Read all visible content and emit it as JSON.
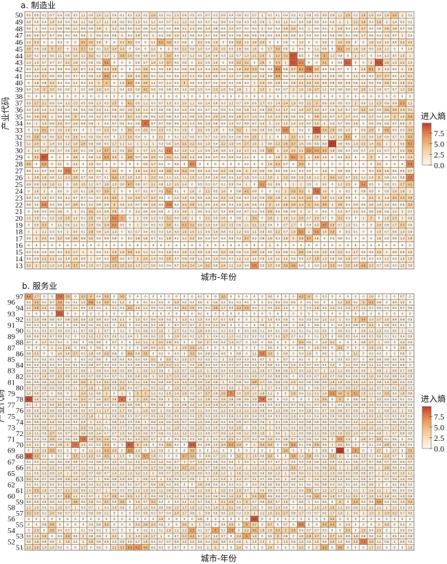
{
  "chart_data": [
    {
      "type": "heatmap",
      "title": "a. 制造业",
      "xlabel": "城市-年份",
      "ylabel": "产业代码",
      "legend_title": "进入熵",
      "legend_ticks": [
        "0.0",
        "2.5",
        "5.0",
        "7.5"
      ],
      "legend_tick_values": [
        0,
        2.5,
        5,
        7.5
      ],
      "color_range": [
        0,
        9.8
      ],
      "legend_position": "right",
      "columns": 50,
      "y_labels": [
        "50",
        "49",
        "48",
        "47",
        "46",
        "45",
        "44",
        "43",
        "42",
        "41",
        "40",
        "39",
        "38",
        "37",
        "36",
        "35",
        "34",
        "33",
        "32",
        "31",
        "30",
        "29",
        "28",
        "27",
        "26",
        "25",
        "24",
        "23",
        "22",
        "21",
        "20",
        "19",
        "18",
        "17",
        "16",
        "15",
        "14",
        "13"
      ],
      "rows": [
        "0.6 0.8 0.2 0.7 0.4 0.5 0.3 1.1 0.6 1.6 1.2 0.4 0.1 0.3 1.3 0.2 2.8 0.3 0.2 1.3 0.6 0.5 0.3 0.7 0.2 0.9 0.4 0.6 0.2 0.7 1 0.2 0.1 0.4 0.3 0.2 0.6 0.5 0.8 0.8 1.2 2.9 0.2 2.6 1.6 0.6 1.9 3.9 1 0.2",
        "0.8 0.5 0.4 1.8 0.8 0.4 0.8 1.1 0.9 1.7 1.1 0.8 0.6 0.5 1.3 0.2 1.1 0.4 0.7 1.1 1.3 0.5 0.3 0.7 0.2 0.9 0.4 0.6 0.3 0.5 0.8 1 0.5 1.2 0.3 0.5 0.8 0.5 0.4 0.5 1 1 2.2 2.8 0.4 2.8 1 1.4 0.5 0.2",
        "0.6 1 0.2 1.1 0.9 0.6 1.1 0.8 0.5 1.9 1 1.2 0.5 0.5 1.4 0.5 1.4 0.2 0.2 0.8 1.1 1.1 0.6 1.4 0.8 0.3 1.2 0.7 0.2 0.4 1 0.2 0.2 1.9 2.5 0.4 1 0.3 0.4 1 1.9 0.3 1.2 2.7 0.2 0.5 2.5 1.8 0.7 0.5",
        "0.6 0.8 0.7 0.7 0.5 0.1 0.5 0.6 1 0.6 0.6 0.6 1 0.2 1.8 0.3 1 0.3 0.8 1.4 1.1 0.5 0.3 0.7 0.2 0.9 0.4 0.6 0.8 0.5 0.5 0.3 0.9 0.8 0.8 0.2 0.4 0.4 0.2 0.6 0.8 0.1 0.5 1.7 0.6 0.4 1.3 0.7 1 0.3",
        "1.2 2.4 0 0 0.4 0 0 4.1 3.2 1.6 0 0 2.1 3.2 0.4 0 1.1 5.1 3.8 0.2 0.5 0 2.1 0.5 1.6 0 0.8 3.2 1.1 1.9 2.4 0 0 0.5 0 1.2 0 0 0.8 0 2.5 2.5 0 0 1.8 1.4 1.2 0.8 2.3 2.2",
        "2.6 0.8 1.6 3 2.7 0 2.1 3.7 1.6 0.2 2.2 2.4 2.2 0 0.4 0 1.2 0 1 0.6 2.2 0.9 1.3 0.4 2.2 1.5 0.6 1.8 0.6 1.6 0 1.7 3.6 0.5 0 0.4 0 1.1 0.8 0 5.1 2.6 1.6 1.6 0.5 1.9 1.2 0 0 1.4",
        "2.3 0.2 0.6 0.6 1.1 0.6 1.6 1.2 3.1 0.2 1.7 1 3.9 2.6 0.6 0.8 0.8 2 3.6 0.4 0.7 1.1 0.6 1.4 0.8 0.3 1.2 0.7 1.3 2.1 2.6 1 3.2 3.2 8.7 0.5 0 0.8 5 1.2 0.8 0 2 0.7 0 0.4 1.1 0.5 1.5 1",
        "1.3 1.3 0.7 0.7 0.7 2.2 1.8 0.4 0.6 0.5 6.1 0 0 0 0.6 0.7 1.8 1.3 3.7 0.6 0.8 0 2.1 0.5 1.6 0 0.8 3.2 3.1 0 2.8 0 3.3 1 8.7 6.5 0 0 4.1 0 0.4 8.3 0 0 2 8.8 2.6 1.3 2.2 1.3",
        "0.3 1.4 1.3 0.2 0.8 0.4 2.2 0.7 1.3 0.5 2.4 2.8 0 0 0.3 2.8 0.2 0.6 1.5 0.2 0.8 0.9 1.3 0.4 2.2 1.5 0.6 1.8 3.2 3.4 0.5 0.3 6.6 0.8 2.7 5.4 7.8 3.4 0.3 0.5 0.7 0 0 1.9 5.1 2 1.2 0.3 1 1.8",
        "0.3 1.2 2.1 0.6 0.5 0.2 0.7 0.2 0.6 1.2 5.6 1.2 0 2.5 1.5 3.4 0.2 1.1 0.2 0.5 1.7 1.1 0.6 1.4 0.8 0.3 1.2 0.7 1.8 1.4 1.6 0.6 4.8 0.3 0.4 1.6 1.3 1.5 0.5 0.5 0.8 0 1.1 0.5 0.2 2.7 2.7 0.4 1.2 2.1",
        "0 1.5 0.8 2.3 0.4 0.2 1.1 0.3 1.2 2 4 0 1.2 5.4 0.6 2.9 1.1 0.7 1.1 0.4 3 0.5 0.3 0.7 0.2 0.9 0.4 0.6 0.3 1 2.3 0.5 1.8 0.2 1.5 2.1 2.2 2.2 0.9 0.8 0.9 0.8 0.5 1.2 0.6 0.6 2.6 0.3 1.8 2.1",
        "0.4 1.4 3 2.3 0.6 0.5 1 0.5 0.8 1.9 1.4 1 0.4 2.3 0.8 4.1 0.8 0.6 0.8 0.5 1.2 0.9 1.3 0.4 2.2 1.5 0.6 1.8 1 1 2.3 1 0.6 0.7 2 1.5 1.9 2.7 1.1 0.5 0.9 0.8 0.5 2.5 1.1 0.9 0.7 0.7 1.3 2.8",
        "0 0 0 0 0 0 0 0 0 0 0 0 0 0 0 0 0 0 0 0 0 0 0 0 0 0 0 0 0 0 0 0 0 0 0 0 0 0 0 0 0 0 0 0 0 0 0 0 0 0",
        "0.9 2.7 2.1 0.9 0.4 1.2 1.5 0.5 0.9 1.3 0.5 2.5 0 4.1 0.5 1.1 0.3 0.7 1.3 0.3 1.6 1.1 0.6 1.4 0.8 0.3 1.2 0.7 0.8 0.6 1.7 0.3 1.4 2.4 1.9 0.5 2.1 3 0.8 0.9 0.5 0.3 2 0.6 1.1 2.3 0.9 0.9 5.3 1.2",
        "0.3 1.6 1.2 1.1 0.8 0.4 0.9 0.6 0.6 1.4 1.1 0.9 0.5 1.8 1.5 1.1 0.7 0.6 0.5 0.3 1.3 0.5 0.3 0.7 0.2 0.9 0.4 0.6 1.6 1.1 0.5 2.4 1.2 1.7 0.3 1.6 2.7 2.2 0.7 0.6 1.4 0.7 0.7 3.4 1.5 0.9 3.3 2.9 2.3 2.1",
        "0.4 1.9 2.5 1 0.6 0.6 3 0.3 0.3 1.2 0.7 0.9 0.7 2.7 1.3 0.5 0.5 1.2 0.6 0.3 1.1 0.9 1.3 0.4 2.2 1.5 0.6 1.8 1.7 1.4 0.4 1.2 1.4 1.5 0.5 0.5 0 2.8 1.3 0.7 1.7 1.7 0.4 0.2 1.7 0.4 0.4 3 1.6 4.4",
        "0.4 1 1.3 0.9 2.2 0.7 1.5 0.8 0.8 1 0.2 0.7 0.5 0.4 0.5 8 0.7 0.7 0.8 0.6 1.3 1.1 0.6 1.4 0.8 0.3 1.2 0.7 0.9 0.7 1.4 1 1.1 1.2 1.2 1.2 0.7 1.9 1 0.3 0.7 0.5 1.5 0 0.8 0.5 0.8 0.7 0.8 2",
        "0 0.9 4.1 0.3 1.6 1.6 0.4 0 1 0.3 2.3 0.4 0 3.5 0.3 2.3 0.4 2.3 0.3 0.4 1.5 0 2.1 0.5 1.6 0 0.8 3.2 1 0.9 0.9 0.9 0.8 6.6 1 0.2 0 8.9 3.4 2.8 0.8 1.3 0 0.9 2.8 0 4.5 0.3 0.3 3.4",
        "0.5 3.8 0.6 0.6 2.2 0.5 2.4 0.4 0.5 0.9 0.9 0 1.7 2.6 0.4 0 0 2.1 0 0.2 1.2 0.5 0.3 0.7 0.2 0.9 0.4 0.6 0.8 2.5 1 1 0 1 3.2 0.3 0 2.8 0 1.3 1.4 5.1 0 1.5 0.8 1.8 0.8 0.7 0.5 4.3",
        "1.1 2.4 1 1.4 0.6 1.2 1.8 2.8 0.8 0.8 0.5 1.7 1.1 1.1 1 1.1 1 0.3 0.5 1.4 2.6 2.2 0.9 1.3 0.4 2.2 1.5 0.6 2.7 1.5 1 0.8 2.2 2.8 3.7 1.6 0.6 0.9 0.8 9.7 0.8 0.6 1.3 2.2 1.4 3.1 1 1 0.9 6.1",
        "1 1.4 1.6 0.9 0.7 0.5 2.5 0.2 0.8 1.4 4.7 1.2 0.6 3.8 1 0.7 1.5 0.2 7.2 0.2 1.9 1.2 1.1 0.6 1.4 0.8 0.3 1.2 1.7 1.1 0.9 4.9 1 2.4 2.5 2.1 5.8 5.4 4.3 1.9 0.8 0.4 0.4 0.7 1.4 1.1 0.7 1 0.6 4.6",
        "0 3.1 8.7 0 1 0 2.5 0 0.9 1.2 5.3 2.4 1 4.8 0.7 0.6 2.5 0.2 3.1 1.1 2.5 1.4 0.5 0.3 0.7 0.2 0.9 0.4 1.1 0 0 0 1.8 2 6.1 4 1 2.9 1.4 0 0.3 2.1 0 0 3 0 0 0.7 0.2 2.4",
        "3.5 0 5.2 0 1.1 0 1.4 0 1.6 0.2 0 0 0 0 0 0.9 1.7 0.2 0 0.5 0 6.7 0 0 0 0 0 0 0.1 0 0 1.8 3.4 0.7 0 4.3 0 0 0 0 0 0 0 0 0 2.1 0 0 0 7.3",
        "0.6 1.1 0.7 0.9 0.5 7.4 1.7 0 1.7 0.5 1 3.1 0 0 1.8 1.4 2.4 0.8 3.8 0.9 3.4 0.9 0.9 1.3 0.4 2.2 1.5 0.6 2 1.2 0.9 0.6 0.5 0.5 0.1 0.4 0.2 0 1.4 0 0.8 0.5 0 0 0.3 2.5 1.5 0.6 0.6 1.7",
        "1 1.8 1.9 0.8 1.2 2.1 2.8 0.7 0.9 0.7 0.1 4.2 1.5 1.8 1.3 1 2.3 0.5 1.1 1.1 1.1 1.9 1.1 0.6 1.4 0.8 0.3 1.2 1.5 0.4 1.1 1.8 1 2.2 0.8 1.5 1.5 1.1 2 3.4 2.2 0.7 2.1 1.1 1.4 3 0.8 0.2 0.8 7.3",
        "0.9 0.9 1.6 1.8 1.1 0 1.8 1.5 1.1 0.7 1.8 1.3 0.8 4.7 0.8 0.7 2.1 0.8 1.2 1.5 1.4 0 0.5 0.3 0.7 0.2 0.9 0.4 1 0 6.1 0.9 0.8 0 1 1 0.5 0 0.6 0 1.2 2.3 0 6.4 0.5 0 0.8 0.1 2.7 4.1",
        "0 1.6 1 0 0.6 0 1.5 0.1 1.8 0.7 3.5 2 0 0 0.7 0.2 0.7 0.5 5.2 0.1 0 1.6 0 2.1 0.5 1.6 0 0.8 4.1 0.8 0 0 0.2 2 3.5 3.2 0 7.8 1.6 0 0 0.5 0 0.8 0.8 0 0.5 1.8 1.8 1",
        "0.9 0.4 1.6 0.7 0.5 1.1 0.7 0.7 0.1 0.7 2.1 3.3 1 1.6 2.3 1.7 2.2 0.5 0 1.3 1.6 0.5 0.9 1.3 0.4 2.2 1.5 0.6 0.7 1.2 0.6 2.9 1.8 2 1.6 2.4 3.2 0 2.9 1.1 1.9 0.9 0 0 2.4 2 1.3 3.3 3.3 2.9",
        "0.8 1.1 6.5 0.3 0.6 0.7 2.9 0.2 1.1 0.9 0.9 3 0.9 1.3 0.7 0.8 1.8 0.3 7.2 0.2 2.4 2.8 1.1 0.6 1.4 0.8 0.3 1.2 1.5 0.5 0.3 3 1.1 2.5 2.8 2.4 4 2.4 3.9 1 2.8 0.4 0.9 0.5 1.6 1.3 1.4 0.4 0.5 3.3",
        "0 0.8 0.4 0.9 1.5 0 1 0.1 3.1 1.2 0.9 2.8 0 0 1.1 0.5 0.8 0.5 0 0.3 1.5 1 0.5 0.3 0.7 0.2 0.9 0.4 0.7 0.4 0.4 2.9 0.5 0.8 0.8 1 1 0 0.4 0 1.2 0.7 1.3 0.4 0.8 1.6 0.5 1.1 1 0.7",
        "1.2 1.6 0.1 1.2 1.9 2.5 1.4 0.2 2.5 0.6 1.7 6.6 5 0 1 0.6 1.2 0.3 3.1 0.6 1.8 1 0 2.1 0.5 1.6 0 0.8 1 3.4 0 2.4 1 1.6 1.2 2.6 0.7 2.4 0.7 0 3.1 0.3 0 1 3 0 1.8 2.3 1 0.9",
        "0 0.9 3.3 0 1.1 0.6 1.1 0.1 2.4 0.6 2.4 6.2 0.6 0 1 0.4 0.5 0.3 3.5 0.1 4.3 3.2 0.9 1.3 0.4 2.2 1.5 0.6 1.1 2.1 1.3 0.4 0 0.7 1.7 0 0.4 1.3 6.5 2.9 0.7 1.3 0.1 0 0 2.4 0.8 1.7 3.3 0.6",
        "0 1 1.1 0.3 0.4 1 0.9 0.1 2.9 0.8 1.4 1.3 0 0.2 0.7 0.4 0.5 0.3 1.4 0.8 1.9 1.6 1.1 0.6 1.4 0.8 0.3 1.2 0.9 1.1 0.9 0.5 2.2 0.7 1.9 6.1 1 5.9 1.6 3.9 0 0.9 0.1 0 0 1.5 0.7 0.8 1.4 0.9",
        "0.6 2 2.4 0.3 2.2 0.8 2.5 0.8 2.2 0.3 0.9 0.9 0 0.4 1.8 1.5 0.7 0.1 1.9 0.1 1.2 2.2 0.5 0.3 0.7 0.2 0.9 0.4 3.7 0.2 0.8 1.6 0.3 1.8 2 2.8 4.7 1.6 0 0.3 0.6 0.1 0 0 0 1.6 0.3 0.5 1.4 1.9",
        "0 0 0 0 0 0 0 0 0 0 0 0 0 0 0 0 0 0 0 0 0 0 0 0 0 0 0 0 0 0 0 1 0 0 0 0 0 0 0 0 0 0 0 0 0 0 0 0 0 0",
        "0.3 0.5 0.3 0.5 0.4 2.2 1.7 1 1 0.3 1.1 2.3 1.9 3.5 1.5 1.1 1.1 0.4 1.6 0.3 1.6 1.4 0.9 1.3 0.4 2.2 1.5 0.6 1.1 2.8 1.3 0.5 1.5 0.8 1.1 3.8 0.8 0.8 1.6 0.9 2.1 0.4 1.7 0.5 0.5 2.5 1 0.9 0.9 1.6",
        "0.6 0.9 2.2 2.1 1.2 1.4 1.8 0.8 1 0.4 0.2 4.7 0.5 0.7 2 2.4 1.4 0.6 2.8 0.7 0.9 0.8 1.1 0.6 1.4 0.8 0.3 1.2 1.1 1.1 0.8 1.3 1.1 1.2 0.5 0.8 1.7 2.8 1.3 0.6 0.8 1.9 0.7 0.5 0.3 0.3 1.2 0.3 1.3 1.5",
        "2.2 2 1.3 1.3 1.4 1.9 3.7 0.8 1.5 0.7 1.8 2.9 2.5 2.2 1.3 1.7 0.9 0.3 0.4 0.7 2.4 2.4 1.4 3.1 0.8 2.4 1.1 1.4 0.4 6.5 0.5 2.7 0.8 3.5 4.8 0.4 0 0.3 1.5 3.3 0.4 2.5 1.8 4.8 2.2 0.7 0.9 0.3 1.5 0.9"
      ]
    },
    {
      "type": "heatmap",
      "title": "b. 服务业",
      "xlabel": "城市-年份",
      "ylabel": "产业代码",
      "legend_title": "进入熵",
      "legend_ticks": [
        "0.0",
        "2.5",
        "5.0",
        "7.5"
      ],
      "legend_tick_values": [
        0,
        2.5,
        5,
        7.5
      ],
      "color_range": [
        0,
        9.8
      ],
      "legend_position": "right",
      "columns": 50,
      "y_labels": [
        "97",
        "96",
        "94",
        "93",
        "92",
        "91",
        "90",
        "89",
        "88",
        "87",
        "86",
        "85",
        "84",
        "83",
        "82",
        "81",
        "80",
        "79",
        "78",
        "77",
        "76",
        "75",
        "74",
        "73",
        "72",
        "71",
        "70",
        "69",
        "68",
        "67",
        "66",
        "65",
        "63",
        "62",
        "61",
        "60",
        "59",
        "58",
        "57",
        "56",
        "55",
        "54",
        "53",
        "52",
        "51"
      ],
      "rows": [
        "6.4 2.7 0 0 7.8 3.9 0 3.3 4 0.4 3.6 0 3.6 0 0 0 0 0 0 0 0 0 0.2 0 0 3.6 0 0 0 0 0 0.8 0 0 0 4.3 4 0 0.3 0 0 0 0 0 1.6 0 0 0 0.7 0",
        "0.2 3.6 0.1 0.7 4.6 0.1 0.1 1.2 5.5 1.2 3.6 0.1 1.4 0 0 0.1 0.1 0.4 0 2.3 0.2 0.2 0.5 0 0.5 0.2 0.1 0.1 0.1 0 0 0.1 0.4 0.4 0.5 0 0.1 0.2 0 0 1.2 3.2 0.1 3 4.4 0.8 0 0.8 1.2 0",
        "1.2 3.8 2.4 0.3 4.5 0.7 1.1 0.6 1.9 0.2 1 1.1 0.3 4.1 1.6 1.1 0.5 0.2 0.5 0.8 3.1 2.6 0.5 0.4 3.5 1.7 0.8 3.3 4.2 0.4 1 0.4 2.1 1.2 0 1 0.4 1.8 0.3 1.4 0.4 1.2 1.7 1.2 0.4 0.5 0.4 0.3 0.7 0.6",
        "0 0 0 0 8.5 0 0 0 0 0 0 0 0 0 0 0 0 0 0 0 0 0 0.2 0 0 0 0 0 0 0 0 0 0 0 0 0 0 0 0 0 0 0 0 0 0 0 0 0 0 0",
        "1.1 1.3 0.9 0.8 0.7 0.9 1.9 0.8 1.3 0.8 0.3 0.5 1.1 0 1.2 0.7 0.9 0.9 0.4 1 1.3 0.1 1.3 0.4 0.7 0.7 0.9 0 0 1 1 1.4 0.3 0.5 0 0.3 0.3 0.4 1.2 1.1 1 0.3 3 4.5 1.4 1.7 1.5 0.9 0.8 0.3",
        "0.3 0.4 0.4 0 0.2 0 0.3 0.6 0.2 0.5 1.1 0 2.1 0 0.4 0.5 0.4 1.5 0 0.7 0.7 0.7 2 0.4 1.1 0.5 0 0 0 0 0.5 1 0 0.5 0 0.8 0 0.6 0 0 0.3 0.4 0.8 0.7 2.4 0 0.9 0.4 0.1 0",
        "0.1 0.1 0.3 0.7 0.6 0.3 0.1 0.7 0.5 1 0.7 0 0.2 0 0.5 0.9 0.3 1.5 0 1.7 0.2 0.2 1.8 0.6 0.1 0.2 0.3 0 0.3 0.6 0.1 0.4 0.1 0.6 0.2 0.1 0.1 0.2 0.6 0 0.6 0.3 0 0.8 1.1 1.3 0.2 0.5 1 0.2",
        "0.8 0.6 0.6 0.7 0.8 0.2 0 0.5 1.2 1.2 0.5 0.6 0.2 0.4 1 0.6 0.6 1.5 0 1.8 0.6 0.2 1.3 1 0.4 0.2 1.2 0.2 0.2 0.2 0.2 0.7 0.2 2.7 0.7 0.2 0 0.1 1.7 0 0.9 0.5 0.4 0.6 0.5 0.9 0.1 0.1 0.4 0.6",
        "0.7 0 1.7 0.4 0.4 0 0.6 0 0.5 0.6 0 0.7 0 0 1.2 1.1 2 2.1 1.8 0.6 0 0 0.8 2 0.3 0.4 1.4 0.7 0 0.3 0 0.6 0 0 0 3.4 0.6 0 1.3 2.1 0 0 0 0.8 1.7 1 0.3 0 1.4 0.4",
        "0 0 0 1 1.1 1.8 0 0.6 0 0.8 0 0 0 0 0 0.9 0.9 1.4 0 1 1.8 3.3 1.5 0 0 0 0 0 0 0 0 0.6 0 0 0 0.6 0 1.5 0.8 0 3.4 0 0 0 1.9 1.3 0 0 1.6 0",
        "0.8 2.1 0 0 1.6 1.6 2.7 0.3 1.8 0.5 2.9 0.8 0 4.4 0.9 3.5 0 0.2 0 0.3 0 3.3 0.4 0.9 0.4 0.5 0 0.9 0 1.1 6.9 3.3 0 0.9 0 0.3 1.6 0 0.5 0 0 0 2.1 0 0.3 0.3 0 0 0.8 0",
        "0.2 0.2 0.2 0.1 0.3 0.1 0 0.2 0.2 0.5 0 0.3 0.4 0.3 0.4 0.4 2.1 0 2.2 0.2 1.2 1.7 0.3 0.3 0.1 1 1.2 0.3 0.3 0.1 0.7 1 0 0.7 0 0.1 0 0 1 0 0.3 0.2 0.7 0 0.9 0.6 0.6 0.2 0.6 0",
        "0.5 0.3 0.3 0.3 0.2 0.4 0.1 0.3 0.8 0.7 0.4 0.2 0.1 0.3 0.6 0.4 0.2 1.9 2.1 1.4 0.1 0.4 1.8 0.4 0.2 0.4 0.3 0.7 0.3 0.3 0.3 0.9 0.1 0.3 1.2 0.4 0.7 0.4 0.1 1.2 0 1.1 0.3 0.4 1.1 1.1 0.3 0.3 0.6 0",
        "0.4 0.4 0.9 0.8 1.7 0.7 0.7 0.8 1 0.9 0.4 0.9 0.5 0.8 1 0.9 1.2 0.9 0 1.3 0.7 0.8 1.2 1 0.5 0.4 0.8 0.6 0.3 1.1 0.9 0.7 0.8 0.6 1.7 0.5 1.2 0.7 1 1.2 1.1 0.6 0.6 0.6 1 0.8 1 0.8 0.7 0.8",
        "0.6 0.7 1.6 0.5 1.5 0.8 0.6 0.6 0.7 0.8 0.4 0.7 0.2 0.8 0.8 0.8 1 0.8 1.7 1.6 0.8 0.6 1.4 0.8 0.8 0.7 0.2 0.9 0.6 0.9 0.7 0.6 0.8 0.6 0 0.5 0.3 0.7 1.6 0.7 0.9 0.4 0.6 0.6 1.6 0.6 0.6 0.8 0.6 0.5",
        "0.5 0.6 0.5 1.5 0.8 0.2 0.6 2.6 2 1.2 2.1 0.8 2.1 0.6 1.1 1.5 0.6 0.8 0.8 1.4 1.4 1.5 0.9 1.5 0.8 1 0.4 0.8 0.2 3.9 1.7 0.5 0.8 0.5 1.8 0.6 0.5 0.8 0.9 1.9 1.5 0.9 1.5 1.2 1.1 0.8 1.2 1.8 0.5 0.3",
        "0.6 0.7 0.8 0.8 0.9 0.5 0.1 1.7 1.8 1 2.4 0.5 2.4 0.4 0.7 1.1 0.5 1.2 0 1.8 0.5 0.7 1.5 1.5 0.4 0.7 0.8 1 0.9 0.7 1 0.7 0.4 0.5 0 0.5 0 0.6 0.7 1.1 0.5 0.8 1.7 1.2 1.2 0.7 0.3 0.5 1.5 0.3",
        "1.2 0.8 0.7 0 0.9 0 1 2.4 1.1 0.8 2 0 1 0 3 3 1.1 0.2 1.5 1.4 1.8 0.5 0.7 2.7 0.8 2.9 7 0.6 2.3 1.2 1.9 1.1 0 0 2.8 0.4 1.1 1.1 1.4 6.2 3.6 4 5.1 1.5 1.1 0.2 3.3 0.4 1.8 0.9",
        "9.2 1.6 0.6 1.2 0.4 0.4 0.6 2.4 0.7 0.6 2.7 1.6 8 0 2 2.4 0.6 0.6 1 1.1 0 0.6 1.1 1.6 0.4 1.6 1.6 0.8 0.8 1.3 7.6 0.8 0 0.2 0 0 0 1.1 2.8 0 4 0 0.6 0.6 1 1.2 0.4 0.3 0.1 0.1",
        "0.7 1 0.3 0.8 2.1 0.9 0.3 1.4 1 0.8 0.3 0.4 1.8 0.8 0.9 1 0.9 0.8 0 1.3 0.8 1.2 1.2 1.4 1.3 1.3 0.8 0.5 0.4 0.3 0.6 0.3 0.4 0.4 0.7 0.5 0.1 0.7 0.6 0 0.4 0.5 0.8 0.8 1.2 0.4 0.2 0.3 0.6 0.4",
        "0.6 0.5 1.1 0.8 0.5 0.5 0.8 0.6 0.7 1.1 1.7 0.3 1.7 0.6 1 1.8 0.8 1 0.5 1.5 1.2 0.8 1.1 0.4 0.2 1.2 0.6 1.3 1.2 1.3 0.8 0.4 1.2 0.8 0.4 0.4 1.6 0.1 0.7 0.9 0.8 0.7 0.9 1 0.9 1 0.9 1.1 1 0.5",
        "0.6 0.9 0.5 0.8 0.8 0.2 0.5 1.3 1.8 1 1 0.6 0.9 0.3 0.7 0.7 0.5 1.4 0.5 0.8 0.3 0.4 1.5 0.3 0.5 0.3 0.9 0.3 0.6 0.4 0.6 0.4 0.3 0.3 1.3 0.3 0.1 0.4 0.5 0.6 0.6 0.6 0.3 0.5 0.9 1.3 0.3 0.3 0.6 0.4",
        "0.6 0.8 0.6 1.5 0.6 0.6 0.4 0.8 1 1.2 1 0.8 1.2 0.3 0.9 1 0.8 1.2 0.5 1.6 0.7 0.5 1.3 0.6 1.2 0.4 0.5 0.9 0.7 0.8 0.5 1 0.4 0.5 0.4 0.6 0.9 0.6 0.5 0.6 0.5 0.4 1.2 1.1 1.4 0.6 1 0.6 0.6 0.4",
        "0.2 0.5 0.9 0.7 1.1 0.4 0.1 2.3 0.6 1.2 0.1 0.5 0.7 0.4 0.9 0.5 0.4 1 0.2 1.8 0.2 0.5 1.5 0.3 0.5 0.4 0.8 1.8 0 0.5 0.4 1 0.4 0.1 0.4 0.5 0.5 0.4 0.6 0.5 0.8 0.5 0.4 1.9 1.5 1.1 0.4 1.7 0.9 0.4",
        "1.4 1.1 0.6 2.7 0.6 0.7 0.8 1.6 0.9 1.4 0.7 0.7 1.3 0.6 1.3 0.9 0.7 0.8 0.2 1.1 1.2 1.1 1.1 0.5 0.7 0.9 1.4 0.8 1.2 0.9 1.5 1 0.6 1 1.1 0.5 0.8 1.1 0.9 1.3 1.6 2.1 1.3 0.7 0.4 0.8 1 0.7 0.8 0.5",
        "0.6 0.3 0.3 2.6 0.6 0.5 0.6 7.5 1.8 2.4 2.5 0.1 1.2 0.4 1.4 2.1 0.7 1 0 0.5 0.1 0.3 0.6 1 0.2 0.3 2.2 0.4 1.7 0.4 0.5 1.9 0.2 0.8 0.7 0.3 0.8 0.4 0.6 1 5.2 1.3 0 1.9 0.7 2.8 0.1 0.5 0 0.3",
        "1.4 1.1 0 0.5 1.8 2 7.7 1.4 0.1 0.2 3.3 0 0 8.4 3 1.6 0 0.6 3.5 0.2 0 8.4 0.4 0.9 1.2 2.3 5.4 3.3 0 1 3.3 3.3 0 0.9 5.3 0.1 0.5 3.5 0.6 1 2.2 0.6 1 0 0.1 0.3 2.8 0.2 0.5 0.1",
        "0 1.5 1.5 4.3 0.3 0 0 0 1.2 1.1 4.3 2.3 0 6.3 1.4 0 1.2 0.6 0 0 0 3.8 0 0 1.1 0 0 0 0 0 0 0 0 3.8 0 0 0 0 0.8 0 9.8 0 6 0 0 2.7 0 1.7 0 3.5",
        "8.6 4.2 0.3 0 0.2 0 3.7 1.3 2.2 0.5 3.5 1 1.7 0 0.8 5.7 1.8 0.1 0 0 4.7 3.9 0 0.8 0.7 1.5 0 3.2 2 1.5 0.8 3.4 0 0 4.8 1.4 3.9 0.5 0.4 3.5 2 0 0.6 1.3 0.2 0.4 2.4 0.7 0 2.6",
        "0.1 0.4 1.1 0.5 0.5 0.6 0.8 0.7 0.3 0.8 0.4 1.2 0.2 1.1 1.1 1.1 1.2 1.2 0.4 0.7 1 0.7 1.6 0.5 0.5 0.3 0.5 1 0.4 1 0.2 0.7 0.7 1 0.4 0.3 0.6 0.6 1.2 0.6 0.3 0.1 0.5 0.7 0.7 0.8 0.7 0.6 0.6 0.7",
        "0.5 1 0.5 1.5 0.4 0.8 0.7 1.1 0.4 1 0.8 1.1 0.8 1 0.9 0.9 1.7 0.8 0.8 0.6 3.7 2.4 1.3 0.7 0.9 0.8 0.2 1.4 1 1.2 1.3 1.1 1.6 0.2 3.3 0.7 1.2 0.6 0.8 2.4 1 1 1.8 1.1 0.8 1 2.8 0.8 0.4 0.9",
        "1.1 0.6 1.2 0.8 1.4 1 0.8 1.2 0.7 0.9 0.7 1.4 1.2 1.2 1.2 1.1 1 0.8 0.7 1.5 1.2 0.9 0.9 0.3 1.6 1.2 1 1.6 1.2 0.9 0.6 0.9 1.2 1 0.9 0.9 1.1 1.2 1.2 1.3 0.9 0.9 0.8 0.8 0.7 1 1.1 0.8 1.5 1.1",
        "2.4 0.8 0.7 0.8 0.9 1.8 1.5 0.8 0.7 1 0.8 0.9 1.3 0.9 1 0.9 1.1 1 1.3 0.6 0.7 0.8 1 1 1.1 1.3 1 1.4 0.7 1.1 0.7 0.6 1.1 1 0.9 1.3 1 1.4 1.2 1.4 1.2 0.6 0.4 0.9 0.7 1 0.7 0.9 1.2 0.9",
        "0.3 0.1 0.4 0.4 0.4 0.1 0.2 0.6 0.3 1.1 0.8 0.1 0.3 0.1 0.7 0.7 0.8 1.9 0.4 0.5 0 0 1.8 0.8 0.2 0.2 0.2 0.1 0 0.3 0.6 0.5 0.5 0.3 0.2 0.1 0.1 0.3 0.8 0.4 0.2 0.1 0.1 0.3 0.8 1 0 0.1 0.5 0.2",
        "1.4 3.3 1.5 0.5 0.7 2.1 1.9 0.8 1.1 0.7 1 0.5 0.3 0.5 1.2 1.3 0.9 1.1 0.9 0.9 0.2 0.8 1.1 0.9 1 1.5 0.6 1.9 0.7 1 0.6 0.9 0.3 0.6 1.2 0.6 3.5 0.7 1.2 1.7 1.3 0.1 0.3 1 1.4 1.1 1 0.6 0.4 0.4",
        "1 0.7 1 0.7 0.7 4.6 1.1 0.4 0.7 1 1.7 2.9 0.6 2.3 1.2 2 0.6 0.9 1.2 1.2 1 0.8 0.8 1.2 0.6 0.9 1.6 2.3 1 2.5 4.2 0.9 0.6 0.7 1.1 0.4 0.8 4.4 0.9 1.8 0.7 1.1 2.1 0.7 1.5 1.4 1.8 0.4 1.3 0.9",
        "0.8 0.8 0.6 0.8 0.5 0.7 3.8 0.6 1.9 0.4 3.1 0.5 3.6 0 1.6 0.7 3.3 0.2 0 0.4 1.1 1.4 0.7 0.6 1 2.1 2.5 1.1 3 0.7 0.8 2.4 0.7 1.5 0 0.8 1 0.1 0.6 0 3 0 4.4 0.3 0.5 5.5 0.3 0.9 1.3 3.3",
        "1.2 1.3 0.4 0.2 1.5 0.7 1 0.3 0.7 1 0.3 1.5 0.8 0 1.7 1.2 0.6 0.8 0.9 1.5 1.7 1.5 1.2 0.5 1.4 2 2.1 0.6 0.7 1.5 0 0.9 1.4 0.3 0 0.2 1 1.6 1.4 2.5 1.1 0.5 0.9 1.1 1.2 1.1 1 1.2 0.3 0.3",
        "3.3 2.4 0.2 2.4 0.8 0.7 0.7 0.2 0.9 0.8 1.1 0 0 0 0.3 0.8 0.3 0.7 0.4 2.4 1.7 0.9 1 0.9 0.5 0.6 1.6 0.2 1.3 2 1.1 1.6 2.1 2.7 0.8 1.7 0.3 0.7 0.6 1.7 1.3 1 0.6 1 1.5 2 2.3 2.2 0.7 0.9",
        "0 0 0 0 0 0 0 0 0 0 0 0 0 0 0 0 0 1.9 0 0 0 0 1.5 0 0 0 0 0 0 8.8 0 0 0 0 0 0 0 0 0 3.2 0 0 0 0 0 0 0 0 0 0",
        "0 0 0.8 3.8 0 0 0 0 0.3 0.8 3.2 0 0 0 2.1 2.6 2.3 0.5 0 0 2.6 1 1 0.3 0 0.4 2.5 0 5 2.7 0 2.7 0 0.7 0 6.9 0 0 4.2 4.4 0 1.3 0 0 0 1 2.4 0 0.4 0",
        "0 2.4 0 3.8 0.4 0.7 0 0.1 0.4 0.2 0 0.7 0 0 0 0.2 0.1 0.1 1.9 1.1 1.2 5.5 0.1 0.7 6 0.2 5.9 0 2.2 4.6 1.8 1.9 3.4 3 3.6 0.4 0.7 0.7 0.3 0 0 3.4 0 2.3 0.4 2.4 0 0 0.6 0.4",
        "0.8 1.5 2.8 0 0.4 4.2 0.6 2 0.9 0.9 0 2.2 0 2 1.3 1.8 1.7 1 0 0.7 2.4 4.2 0.7 1.7 1.4 0.7 0 2.4 6 1.8 0 0.5 3 0.8 0 1.5 2.9 2.7 0.4 2.7 1.5 0.8 1.9 0.9 0.6 1.4 0 0.5 0.5 0.8",
        "0.8 1.8 0.9 0.9 1 1.8 0.2 1 2.5 0.8 0.9 0.3 0.9 0.8 0.7 1.8 0.4 0.7 0.7 0.9 1.2 1.2 0.8 0.4 2.4 0.8 0.3 0.9 1 1.2 1.3 1 1 1.3 0.6 1.3 0.3 1.5 0.6 2.5 1.2 0.5 2.2 7.4 2.8 1.1 0.6 1 0.9 0.3",
        "2.3 2.9 1.4 1.3 0.5 0 0 1.7 0 0.6 0 2.2 3.3 5.9 6.2 4.6 0.6 0.3 0 0.7 0 0 0.3 1 2 0 0 2.4 0 0 0 2.4 0 0 0 2.3 0 2 5.3 0 4.8 0 0 0 1.7 1.7 0 0 0 1.6"
      ]
    }
  ],
  "colors": {
    "scale": [
      "#fdf6ec",
      "#f9e2c4",
      "#f4c993",
      "#eda567",
      "#df7447",
      "#c0392b"
    ],
    "cell_border": "#555555",
    "cell_text": "#333333"
  }
}
